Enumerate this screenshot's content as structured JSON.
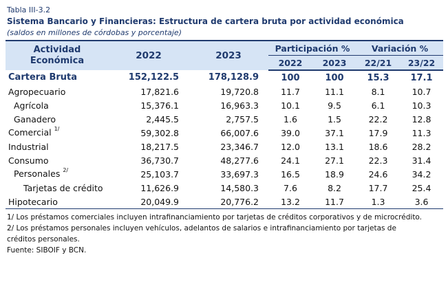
{
  "table_label": "Tabla III-3.2",
  "title": "Sistema Bancario y Financieras: Estructura de cartera bruta por actividad económica",
  "subtitle": "(saldos en millones de córdobas y porcentaje)",
  "header": {
    "activity_line1": "Actividad",
    "activity_line2": "Económica",
    "year_2022": "2022",
    "year_2023": "2023",
    "participacion": "Participación %",
    "variacion": "Variación %",
    "sub_2022": "2022",
    "sub_2023": "2023",
    "sub_var1": "22/21",
    "sub_var2": "23/22"
  },
  "rows": [
    {
      "label": "Cartera Bruta",
      "note": "",
      "v2022": "152,122.5",
      "v2023": "178,128.9",
      "p2022": "100",
      "p2023": "100",
      "var1": "15.3",
      "var2": "17.1"
    },
    {
      "label": "Agropecuario",
      "note": "",
      "v2022": "17,821.6",
      "v2023": "19,720.8",
      "p2022": "11.7",
      "p2023": "11.1",
      "var1": "8.1",
      "var2": "10.7"
    },
    {
      "label": "Agrícola",
      "note": "",
      "v2022": "15,376.1",
      "v2023": "16,963.3",
      "p2022": "10.1",
      "p2023": "9.5",
      "var1": "6.1",
      "var2": "10.3"
    },
    {
      "label": "Ganadero",
      "note": "",
      "v2022": "2,445.5",
      "v2023": "2,757.5",
      "p2022": "1.6",
      "p2023": "1.5",
      "var1": "22.2",
      "var2": "12.8"
    },
    {
      "label": "Comercial",
      "note": "1/",
      "v2022": "59,302.8",
      "v2023": "66,007.6",
      "p2022": "39.0",
      "p2023": "37.1",
      "var1": "17.9",
      "var2": "11.3"
    },
    {
      "label": "Industrial",
      "note": "",
      "v2022": "18,217.5",
      "v2023": "23,346.7",
      "p2022": "12.0",
      "p2023": "13.1",
      "var1": "18.6",
      "var2": "28.2"
    },
    {
      "label": "Consumo",
      "note": "",
      "v2022": "36,730.7",
      "v2023": "48,277.6",
      "p2022": "24.1",
      "p2023": "27.1",
      "var1": "22.3",
      "var2": "31.4"
    },
    {
      "label": "Personales",
      "note": "2/",
      "v2022": "25,103.7",
      "v2023": "33,697.3",
      "p2022": "16.5",
      "p2023": "18.9",
      "var1": "24.6",
      "var2": "34.2"
    },
    {
      "label": "Tarjetas de crédito",
      "note": "",
      "v2022": "11,626.9",
      "v2023": "14,580.3",
      "p2022": "7.6",
      "p2023": "8.2",
      "var1": "17.7",
      "var2": "25.4"
    },
    {
      "label": "Hipotecario",
      "note": "",
      "v2022": "20,049.9",
      "v2023": "20,776.2",
      "p2022": "13.2",
      "p2023": "11.7",
      "var1": "1.3",
      "var2": "3.6"
    }
  ],
  "notes": {
    "note1": "1/ Los préstamos comerciales incluyen intrafinanciamiento por tarjetas de créditos corporativos y de microcrédito.",
    "note2a": "2/ Los préstamos personales incluyen vehículos, adelantos de salarios e  intrafinanciamiento por tarjetas de",
    "note2b": "créditos personales.",
    "source": "Fuente: SIBOIF y BCN."
  }
}
